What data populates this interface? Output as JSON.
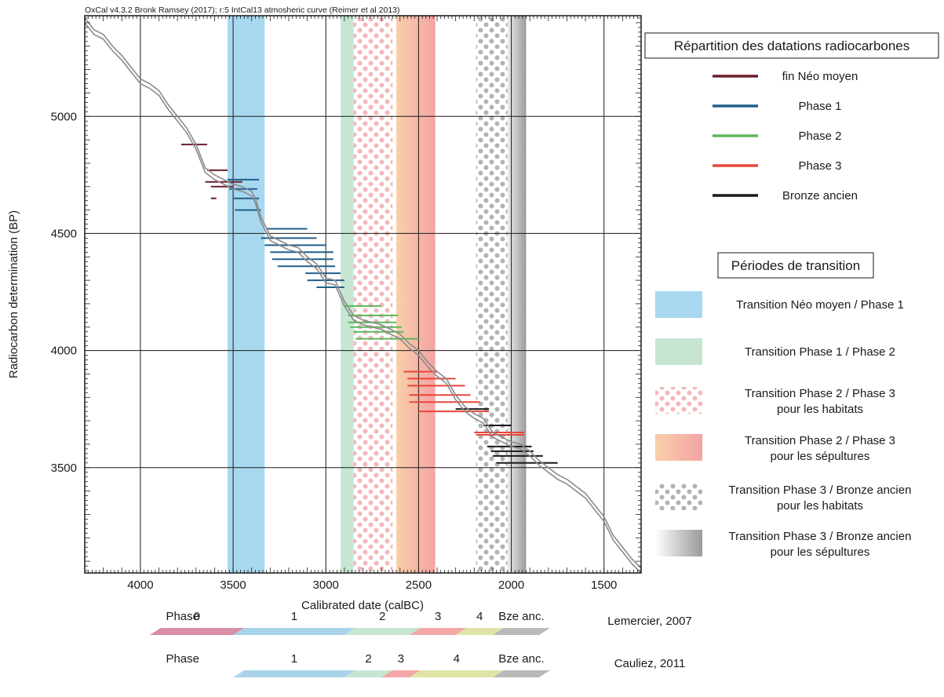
{
  "caption": "OxCal v4.3.2 Bronk Ramsey (2017); r:5 IntCal13 atmosheric curve (Reimer et al 2013)",
  "chart_data": {
    "type": "line",
    "xlabel": "Calibrated date (calBC)",
    "ylabel": "Radiocarbon determination (BP)",
    "xlim": [
      4300,
      1300
    ],
    "ylim": [
      3050,
      5430
    ],
    "x_ticks": [
      4000,
      3500,
      3000,
      2500,
      2000,
      1500
    ],
    "y_ticks": [
      3500,
      4000,
      4500,
      5000
    ],
    "grid": true,
    "calibration_curve": {
      "x": [
        4300,
        4250,
        4200,
        4150,
        4100,
        4050,
        4000,
        3950,
        3900,
        3850,
        3800,
        3750,
        3700,
        3650,
        3600,
        3550,
        3500,
        3450,
        3400,
        3380,
        3350,
        3300,
        3250,
        3200,
        3150,
        3100,
        3050,
        3000,
        2950,
        2900,
        2850,
        2800,
        2750,
        2700,
        2650,
        2600,
        2550,
        2500,
        2450,
        2400,
        2350,
        2300,
        2250,
        2200,
        2150,
        2100,
        2050,
        2000,
        1950,
        1900,
        1850,
        1800,
        1750,
        1700,
        1650,
        1600,
        1550,
        1500,
        1450,
        1400,
        1350,
        1300
      ],
      "y": [
        5410,
        5360,
        5340,
        5290,
        5250,
        5200,
        5150,
        5130,
        5100,
        5040,
        4990,
        4940,
        4870,
        4770,
        4740,
        4720,
        4700,
        4690,
        4670,
        4640,
        4560,
        4480,
        4460,
        4440,
        4430,
        4390,
        4360,
        4300,
        4290,
        4200,
        4140,
        4120,
        4110,
        4100,
        4080,
        4060,
        4020,
        3990,
        3940,
        3900,
        3870,
        3800,
        3750,
        3720,
        3700,
        3640,
        3620,
        3600,
        3590,
        3560,
        3520,
        3490,
        3460,
        3440,
        3410,
        3380,
        3330,
        3280,
        3200,
        3150,
        3100,
        3060
      ]
    },
    "date_segments": [
      {
        "phase": "fin Néo moyen",
        "bp": 4880,
        "from": 3780,
        "to": 3640
      },
      {
        "phase": "fin Néo moyen",
        "bp": 4770,
        "from": 3640,
        "to": 3530
      },
      {
        "phase": "fin Néo moyen",
        "bp": 4720,
        "from": 3650,
        "to": 3450
      },
      {
        "phase": "fin Néo moyen",
        "bp": 4700,
        "from": 3620,
        "to": 3500
      },
      {
        "phase": "fin Néo moyen",
        "bp": 4650,
        "from": 3620,
        "to": 3590
      },
      {
        "phase": "Phase 1",
        "bp": 4730,
        "from": 3530,
        "to": 3360
      },
      {
        "phase": "Phase 1",
        "bp": 4690,
        "from": 3520,
        "to": 3370
      },
      {
        "phase": "Phase 1",
        "bp": 4650,
        "from": 3500,
        "to": 3360
      },
      {
        "phase": "Phase 1",
        "bp": 4600,
        "from": 3490,
        "to": 3350
      },
      {
        "phase": "Phase 1",
        "bp": 4520,
        "from": 3320,
        "to": 3100
      },
      {
        "phase": "Phase 1",
        "bp": 4480,
        "from": 3350,
        "to": 3050
      },
      {
        "phase": "Phase 1",
        "bp": 4450,
        "from": 3330,
        "to": 3000
      },
      {
        "phase": "Phase 1",
        "bp": 4420,
        "from": 3300,
        "to": 2960
      },
      {
        "phase": "Phase 1",
        "bp": 4390,
        "from": 3290,
        "to": 2960
      },
      {
        "phase": "Phase 1",
        "bp": 4360,
        "from": 3260,
        "to": 2950
      },
      {
        "phase": "Phase 1",
        "bp": 4330,
        "from": 3110,
        "to": 2920
      },
      {
        "phase": "Phase 1",
        "bp": 4300,
        "from": 3100,
        "to": 2900
      },
      {
        "phase": "Phase 1",
        "bp": 4270,
        "from": 3050,
        "to": 2900
      },
      {
        "phase": "Phase 2",
        "bp": 4190,
        "from": 2900,
        "to": 2700
      },
      {
        "phase": "Phase 2",
        "bp": 4150,
        "from": 2880,
        "to": 2610
      },
      {
        "phase": "Phase 2",
        "bp": 4120,
        "from": 2880,
        "to": 2620
      },
      {
        "phase": "Phase 2",
        "bp": 4100,
        "from": 2870,
        "to": 2590
      },
      {
        "phase": "Phase 2",
        "bp": 4080,
        "from": 2850,
        "to": 2580
      },
      {
        "phase": "Phase 2",
        "bp": 4050,
        "from": 2840,
        "to": 2500
      },
      {
        "phase": "Phase 3",
        "bp": 3910,
        "from": 2580,
        "to": 2400
      },
      {
        "phase": "Phase 3",
        "bp": 3880,
        "from": 2560,
        "to": 2300
      },
      {
        "phase": "Phase 3",
        "bp": 3850,
        "from": 2560,
        "to": 2250
      },
      {
        "phase": "Phase 3",
        "bp": 3810,
        "from": 2550,
        "to": 2220
      },
      {
        "phase": "Phase 3",
        "bp": 3780,
        "from": 2550,
        "to": 2170
      },
      {
        "phase": "Phase 3",
        "bp": 3740,
        "from": 2500,
        "to": 2120
      },
      {
        "phase": "Phase 3",
        "bp": 3650,
        "from": 2200,
        "to": 1930
      },
      {
        "phase": "Phase 3",
        "bp": 3640,
        "from": 2190,
        "to": 1930
      },
      {
        "phase": "Bronze ancien",
        "bp": 3750,
        "from": 2300,
        "to": 2120
      },
      {
        "phase": "Bronze ancien",
        "bp": 3680,
        "from": 2150,
        "to": 2000
      },
      {
        "phase": "Bronze ancien",
        "bp": 3590,
        "from": 2130,
        "to": 1890
      },
      {
        "phase": "Bronze ancien",
        "bp": 3570,
        "from": 2110,
        "to": 1880
      },
      {
        "phase": "Bronze ancien",
        "bp": 3550,
        "from": 2100,
        "to": 1830
      },
      {
        "phase": "Bronze ancien",
        "bp": 3520,
        "from": 2080,
        "to": 1750
      }
    ],
    "transition_bands": [
      {
        "label": "Transition Néo moyen / Phase 1",
        "from": 3530,
        "to": 3330,
        "style": "solid",
        "color": "#a8d8ef"
      },
      {
        "label": "Transition Phase 1 / Phase 2",
        "from": 2920,
        "to": 2850,
        "style": "solid",
        "color": "#c6e6d2"
      },
      {
        "label": "Transition Phase 2 / Phase 3 pour les habitats",
        "from": 2850,
        "to": 2640,
        "style": "dotted",
        "color": "#f2a4aa"
      },
      {
        "label": "Transition Phase 2 / Phase 3 pour les sépultures",
        "from": 2620,
        "to": 2410,
        "style": "gradient",
        "color": "#f7b89c"
      },
      {
        "label": "Transition Phase 3 / Bronze ancien pour les habitats",
        "from": 2190,
        "to": 2020,
        "style": "dotted",
        "color": "#a8a8a8"
      },
      {
        "label": "Transition Phase 3 / Bronze ancien pour les sépultures",
        "from": 2020,
        "to": 1920,
        "style": "gradient",
        "color": "#999999"
      }
    ]
  },
  "legend": {
    "dating_title": "Répartition des datations radiocarbones",
    "dating_items": [
      {
        "label": "fin Néo moyen",
        "color": "#6b1f2b"
      },
      {
        "label": "Phase 1",
        "color": "#1f5f8b"
      },
      {
        "label": "Phase 2",
        "color": "#5cb85c"
      },
      {
        "label": "Phase 3",
        "color": "#e8463a"
      },
      {
        "label": "Bronze ancien",
        "color": "#1a1a1a"
      }
    ],
    "transition_title": "Périodes de transition",
    "transition_items": [
      {
        "line1": "Transition Néo moyen / Phase 1",
        "line2": "",
        "swatch": "solid-blue"
      },
      {
        "line1": "Transition Phase 1 / Phase 2",
        "line2": "",
        "swatch": "solid-green"
      },
      {
        "line1": "Transition Phase 2 / Phase 3",
        "line2": "pour les habitats",
        "swatch": "dots-pink"
      },
      {
        "line1": "Transition Phase 2 / Phase 3",
        "line2": "pour les sépultures",
        "swatch": "grad-orange"
      },
      {
        "line1": "Transition Phase 3 / Bronze ancien",
        "line2": "pour les habitats",
        "swatch": "dots-grey"
      },
      {
        "line1": "Transition Phase 3 / Bronze ancien",
        "line2": "pour les sépultures",
        "swatch": "grad-grey"
      }
    ]
  },
  "phase_scales": [
    {
      "label": "Phase",
      "source": "Lemercier, 2007",
      "segments": [
        {
          "name": "0",
          "from": 3950,
          "to": 3500,
          "color": "#d98fa3"
        },
        {
          "name": "1",
          "from": 3500,
          "to": 2900,
          "color": "#a9d3ea"
        },
        {
          "name": "2",
          "from": 2900,
          "to": 2550,
          "color": "#c6e6d4"
        },
        {
          "name": "3",
          "from": 2550,
          "to": 2300,
          "color": "#f4a7a7"
        },
        {
          "name": "4",
          "from": 2300,
          "to": 2100,
          "color": "#dfe4a6"
        },
        {
          "name": "Bze anc.",
          "from": 2100,
          "to": 1850,
          "color": "#b9b9b9"
        }
      ]
    },
    {
      "label": "Phase",
      "source": "Cauliez, 2011",
      "segments": [
        {
          "name": "1",
          "from": 3500,
          "to": 2900,
          "color": "#a9d3ea"
        },
        {
          "name": "2",
          "from": 2900,
          "to": 2700,
          "color": "#c6e6d4"
        },
        {
          "name": "3",
          "from": 2700,
          "to": 2550,
          "color": "#f4a7a7"
        },
        {
          "name": "4",
          "from": 2550,
          "to": 2100,
          "color": "#dfe4a6"
        },
        {
          "name": "Bze anc.",
          "from": 2100,
          "to": 1850,
          "color": "#b9b9b9"
        }
      ]
    }
  ]
}
